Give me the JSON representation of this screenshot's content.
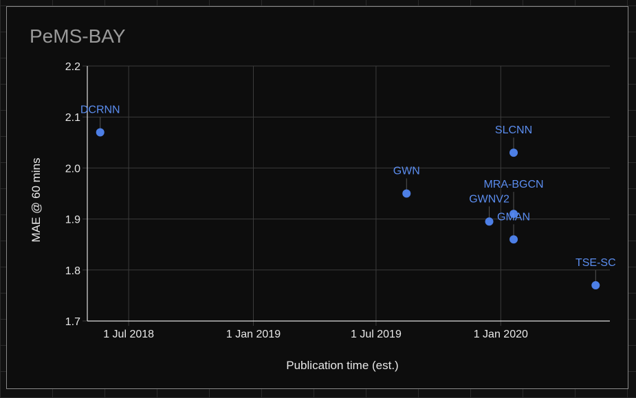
{
  "chart_data": {
    "type": "scatter",
    "title": "PeMS-BAY",
    "xlabel": "Publication time (est.)",
    "ylabel": "MAE @ 60 mins",
    "x_ticks": [
      "1 Jul 2018",
      "1 Jan 2019",
      "1 Jul 2019",
      "1 Jan 2020"
    ],
    "y_ticks": [
      "1.7",
      "1.8",
      "1.9",
      "2.0",
      "2.1",
      "2.2"
    ],
    "ylim": [
      1.7,
      2.2
    ],
    "xlim": [
      "2018-05-01",
      "2020-06-10"
    ],
    "grid": true,
    "point_color": "#4d7fe6",
    "points": [
      {
        "label": "DCRNN",
        "x": "2018-05-20",
        "y": 2.07
      },
      {
        "label": "GWN",
        "x": "2019-08-15",
        "y": 1.95
      },
      {
        "label": "GWNV2",
        "x": "2019-12-15",
        "y": 1.895
      },
      {
        "label": "SLCNN",
        "x": "2020-01-20",
        "y": 2.03
      },
      {
        "label": "MRA-BGCN",
        "x": "2020-01-20",
        "y": 1.91
      },
      {
        "label": "GMAN",
        "x": "2020-01-20",
        "y": 1.86
      },
      {
        "label": "TSE-SC",
        "x": "2020-05-20",
        "y": 1.77
      }
    ]
  }
}
